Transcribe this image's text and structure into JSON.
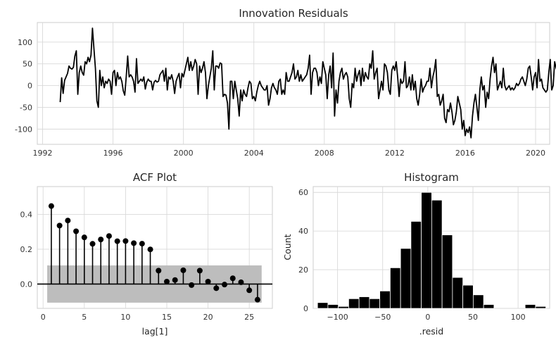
{
  "chart_data": [
    {
      "type": "line",
      "title": "Innovation Residuals",
      "xlabel": "",
      "ylabel": "",
      "x_ticks": [
        "1992",
        "1996",
        "2000",
        "2004",
        "2008",
        "2012",
        "2016",
        "2020"
      ],
      "y_ticks": [
        "-100",
        "-50",
        "0",
        "50",
        "100"
      ],
      "xlim": [
        1991.7,
        2020.8
      ],
      "ylim": [
        -135,
        145
      ],
      "grid": true,
      "color": "#000000",
      "x_start": 1993.0,
      "x_step_months": 1,
      "values": [
        -38,
        18,
        -18,
        12,
        20,
        28,
        45,
        40,
        38,
        42,
        68,
        80,
        -20,
        30,
        45,
        30,
        24,
        55,
        50,
        65,
        55,
        70,
        132,
        85,
        40,
        -35,
        -50,
        35,
        0,
        20,
        -5,
        10,
        5,
        15,
        10,
        -20,
        30,
        35,
        0,
        30,
        15,
        20,
        10,
        -12,
        -22,
        20,
        68,
        20,
        25,
        20,
        10,
        -15,
        62,
        5,
        10,
        15,
        10,
        20,
        -8,
        8,
        15,
        10,
        10,
        -10,
        8,
        12,
        8,
        10,
        25,
        30,
        35,
        10,
        40,
        -10,
        20,
        15,
        25,
        10,
        -18,
        10,
        20,
        28,
        -5,
        28,
        20,
        35,
        50,
        65,
        35,
        55,
        35,
        45,
        60,
        50,
        -20,
        45,
        30,
        40,
        55,
        30,
        -30,
        0,
        20,
        40,
        80,
        -10,
        45,
        45,
        40,
        52,
        50,
        -25,
        -20,
        -22,
        -40,
        -100,
        10,
        10,
        -30,
        10,
        -10,
        -30,
        -70,
        -10,
        -35,
        -10,
        -20,
        -25,
        -5,
        10,
        5,
        -30,
        -25,
        -35,
        -15,
        0,
        10,
        0,
        -5,
        -10,
        -10,
        0,
        -45,
        -30,
        -5,
        5,
        -5,
        -10,
        -20,
        10,
        15,
        -20,
        -10,
        -20,
        30,
        10,
        10,
        20,
        30,
        50,
        15,
        20,
        35,
        10,
        25,
        10,
        15,
        20,
        25,
        40,
        70,
        -20,
        30,
        40,
        40,
        30,
        0,
        20,
        5,
        55,
        40,
        25,
        -30,
        25,
        45,
        -5,
        75,
        -70,
        -10,
        -40,
        10,
        30,
        40,
        15,
        25,
        30,
        20,
        -30,
        -50,
        5,
        -5,
        40,
        10,
        25,
        35,
        0,
        40,
        10,
        30,
        20,
        15,
        50,
        40,
        80,
        15,
        30,
        40,
        -30,
        -10,
        10,
        -10,
        50,
        45,
        30,
        -10,
        -20,
        35,
        45,
        35,
        55,
        20,
        -25,
        15,
        5,
        10,
        55,
        -5,
        0,
        20,
        -10,
        25,
        -10,
        10,
        -30,
        -45,
        -20,
        15,
        -15,
        -5,
        0,
        10,
        10,
        40,
        -5,
        20,
        35,
        60,
        -25,
        -20,
        -45,
        -35,
        -20,
        -75,
        -85,
        -55,
        -60,
        -40,
        -60,
        -90,
        -80,
        -60,
        -25,
        -40,
        -55,
        -100,
        -80,
        -115,
        -100,
        -108,
        -95,
        -120,
        -70,
        -40,
        -20,
        -50,
        -80,
        -10,
        20,
        -10,
        0,
        -50,
        -15,
        -30,
        15,
        45,
        65,
        30,
        50,
        -10,
        0,
        10,
        -5,
        40,
        0,
        -10,
        -5,
        0,
        -10,
        -5,
        -10,
        -5,
        5,
        0,
        5,
        15,
        20,
        10,
        0,
        15,
        40,
        45,
        20,
        -10,
        20,
        30,
        -5,
        60,
        10,
        15,
        -5,
        -10,
        -15,
        -10,
        30,
        60,
        -10,
        0,
        55,
        40,
        30,
        -5,
        60,
        25,
        45,
        -10,
        -10,
        -5,
        25,
        5,
        -5,
        -20,
        -30,
        -15,
        20,
        40,
        15,
        35,
        60,
        -20,
        5,
        -5,
        25,
        40,
        30,
        40,
        10,
        -10,
        20,
        30,
        -15,
        -55,
        5,
        15,
        -35,
        30,
        15,
        5,
        40,
        10,
        5,
        -10,
        30,
        -5,
        15,
        -5,
        -10,
        30,
        20,
        -15,
        40,
        30,
        -5,
        -15,
        40,
        20,
        55,
        30,
        35,
        -5,
        -10,
        20,
        15,
        10,
        35,
        40,
        -20,
        5,
        -10,
        0,
        10,
        20,
        -10,
        -5,
        15,
        -45,
        -30,
        5,
        0,
        15,
        -10,
        -25,
        -5,
        5,
        -15,
        -25,
        35,
        50,
        -10,
        35,
        15,
        -10,
        0,
        15,
        30,
        45,
        5,
        -10,
        20,
        -5,
        30,
        10,
        -20,
        -5,
        0,
        20,
        40,
        15,
        25,
        -10,
        -5,
        5,
        10,
        -10,
        20,
        30,
        5,
        -15,
        35,
        15,
        45,
        20,
        25,
        -5,
        20,
        10,
        -5,
        0,
        -10,
        20,
        30,
        -25,
        5,
        10,
        5,
        -20,
        5,
        30,
        -10,
        15,
        30,
        5,
        -30,
        25,
        10,
        -15,
        5,
        10,
        -5,
        30,
        -5,
        10,
        -10,
        -5,
        -10,
        -5
      ]
    },
    {
      "type": "bar",
      "title": "ACF Plot",
      "xlabel": "lag[1]",
      "ylabel": "",
      "x_ticks": [
        "0",
        "5",
        "10",
        "15",
        "20",
        "25"
      ],
      "y_ticks": [
        "0.0",
        "0.2",
        "0.4"
      ],
      "xlim": [
        -0.7,
        27.8
      ],
      "ylim": [
        -0.14,
        0.56
      ],
      "confidence_band": [
        -0.107,
        0.107
      ],
      "confidence_band_color": "#bdbdbd",
      "grid": true,
      "color": "#000000",
      "lags": [
        1,
        2,
        3,
        4,
        5,
        6,
        7,
        8,
        9,
        10,
        11,
        12,
        13,
        14,
        15,
        16,
        17,
        18,
        19,
        20,
        21,
        22,
        23,
        24,
        25,
        26
      ],
      "values": [
        0.448,
        0.336,
        0.365,
        0.303,
        0.268,
        0.231,
        0.256,
        0.276,
        0.246,
        0.247,
        0.235,
        0.232,
        0.199,
        0.077,
        0.014,
        0.023,
        0.079,
        -0.006,
        0.077,
        0.014,
        -0.024,
        -0.003,
        0.033,
        0.01,
        -0.036,
        -0.09
      ]
    },
    {
      "type": "bar",
      "title": "Histogram",
      "xlabel": ".resid",
      "ylabel": "Count",
      "x_ticks": [
        "−100",
        "−50",
        "0",
        "50",
        "100"
      ],
      "y_ticks": [
        "0",
        "20",
        "40",
        "60"
      ],
      "xlim": [
        -127,
        135
      ],
      "ylim": [
        0,
        63
      ],
      "bin_width": 11.5,
      "grid": true,
      "color": "#000000",
      "bin_left_edges": [
        -122.2,
        -110.7,
        -99.2,
        -87.7,
        -76.2,
        -64.7,
        -53.2,
        -41.7,
        -30.2,
        -18.7,
        -7.2,
        4.3,
        15.8,
        27.3,
        38.8,
        50.3,
        61.8,
        73.3,
        84.8,
        96.3,
        107.8,
        119.3
      ],
      "counts": [
        3,
        2,
        1,
        5,
        6,
        5,
        9,
        21,
        31,
        45,
        60,
        56,
        38,
        16,
        12,
        7,
        2,
        0,
        0,
        0,
        2,
        1
      ]
    }
  ]
}
